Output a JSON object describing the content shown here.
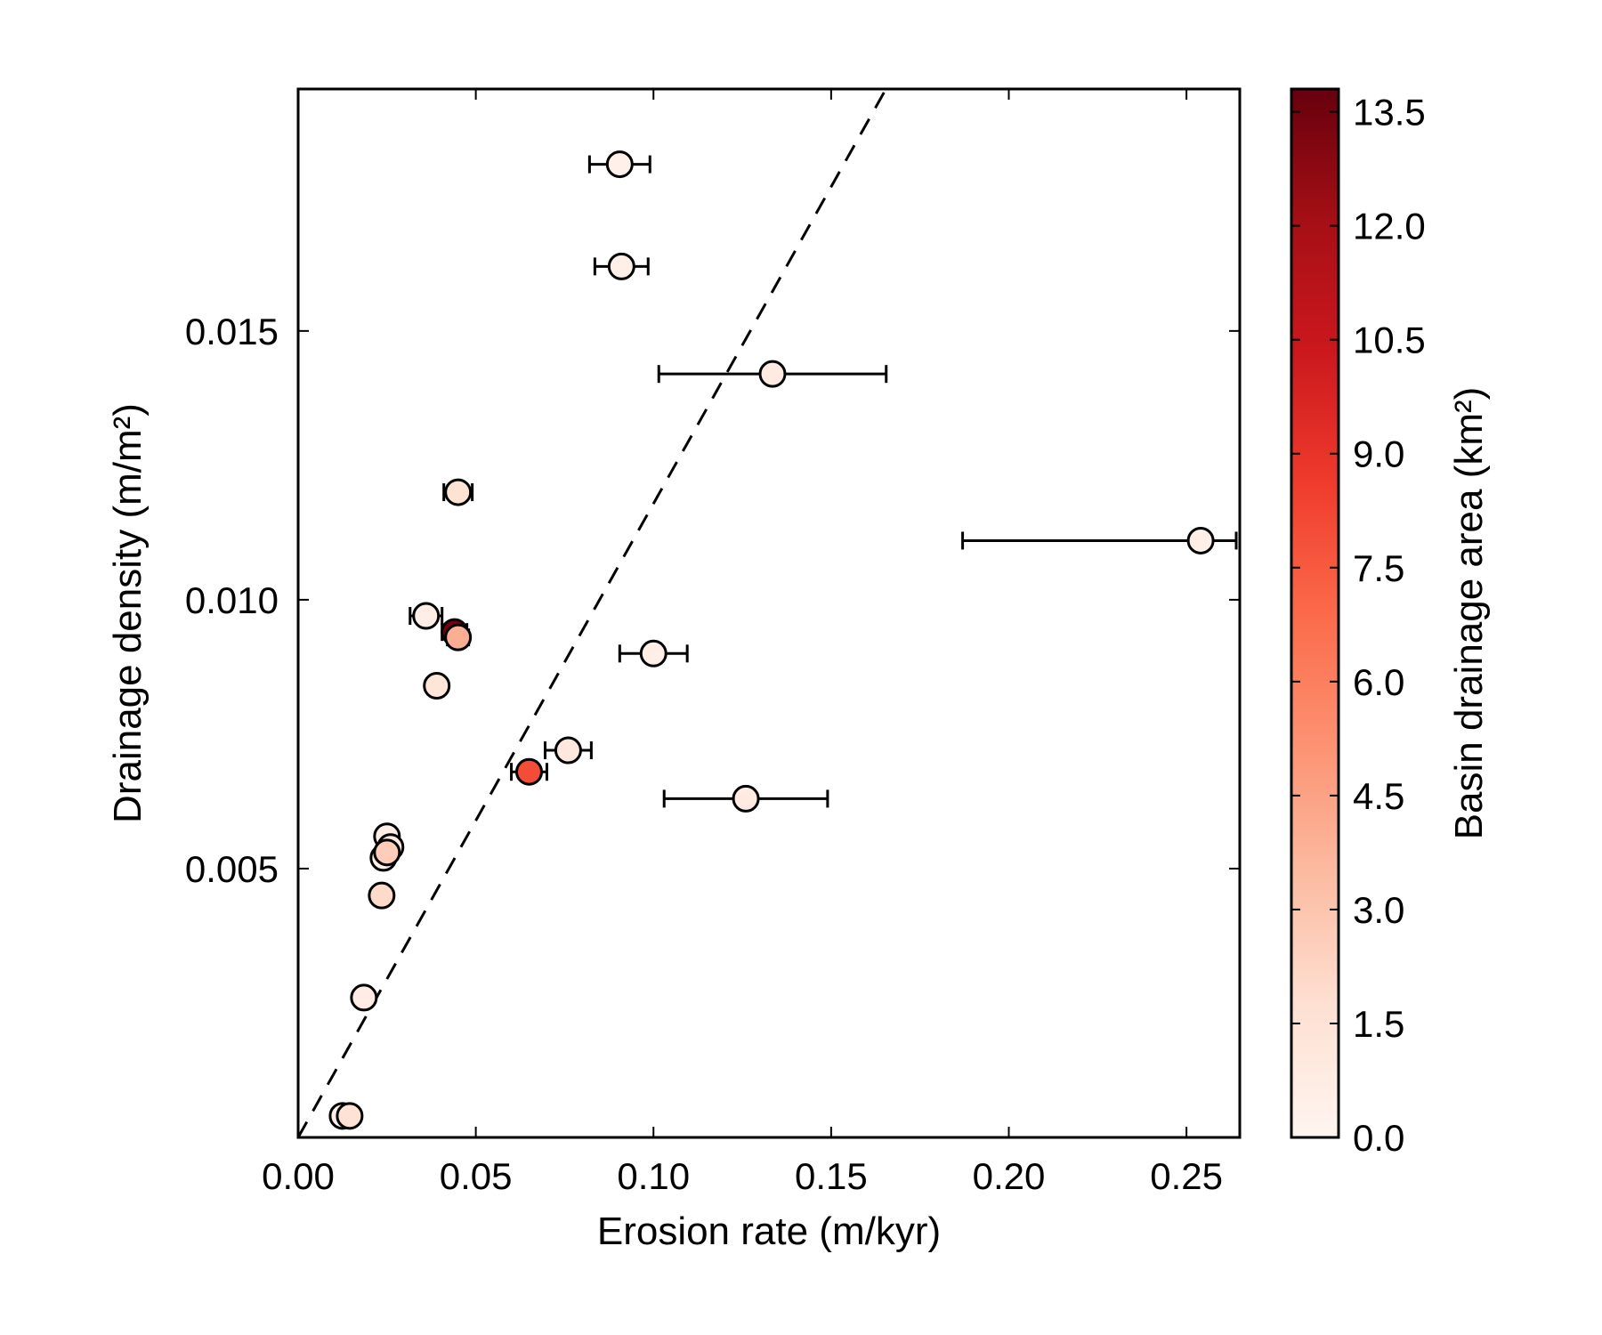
{
  "chart_data": {
    "type": "scatter",
    "title": "",
    "xlabel": "Erosion rate (m/kyr)",
    "ylabel": "Drainage density (m/m²)",
    "xlim": [
      0.0,
      0.265
    ],
    "ylim": [
      0.0,
      0.0195
    ],
    "xticks": [
      "0.00",
      "0.05",
      "0.10",
      "0.15",
      "0.20",
      "0.25"
    ],
    "yticks": [
      "0.005",
      "0.010",
      "0.015"
    ],
    "grid": false,
    "colorbar": {
      "label": "Basin drainage area (km²)",
      "range": [
        0.0,
        13.8
      ],
      "ticks": [
        "0.0",
        "1.5",
        "3.0",
        "4.5",
        "6.0",
        "7.5",
        "9.0",
        "10.5",
        "12.0",
        "13.5"
      ],
      "colormap": "Reds",
      "colors": [
        "#fff5f0",
        "#fee0d2",
        "#fcbba1",
        "#fc9272",
        "#fb6a4a",
        "#ef3b2c",
        "#cb181d",
        "#a50f15",
        "#67000d"
      ]
    },
    "fit_line": {
      "style": "dashed",
      "x": [
        0.0,
        0.165
      ],
      "y": [
        0.0,
        0.01945
      ]
    },
    "points": [
      {
        "x": 0.0905,
        "y": 0.0181,
        "xerr": [
          0.0085,
          0.0085
        ],
        "area": 0.4
      },
      {
        "x": 0.091,
        "y": 0.0162,
        "xerr": [
          0.0075,
          0.0075
        ],
        "area": 0.5
      },
      {
        "x": 0.1335,
        "y": 0.0142,
        "xerr": [
          0.032,
          0.032
        ],
        "area": 0.9
      },
      {
        "x": 0.045,
        "y": 0.012,
        "xerr": [
          0.004,
          0.004
        ],
        "area": 1.6
      },
      {
        "x": 0.254,
        "y": 0.0111,
        "xerr": [
          0.067,
          0.01
        ],
        "area": 0.5
      },
      {
        "x": 0.036,
        "y": 0.0097,
        "xerr": [
          0.0045,
          0.0045
        ],
        "area": 0.6
      },
      {
        "x": 0.044,
        "y": 0.0094,
        "xerr": [
          0.0035,
          0.0035
        ],
        "area": 13.5
      },
      {
        "x": 0.045,
        "y": 0.0093,
        "xerr": [
          0.003,
          0.003
        ],
        "area": 4.0
      },
      {
        "x": 0.1,
        "y": 0.009,
        "xerr": [
          0.0095,
          0.0095
        ],
        "area": 0.5
      },
      {
        "x": 0.039,
        "y": 0.0084,
        "xerr": [
          0.0025,
          0.0025
        ],
        "area": 1.3
      },
      {
        "x": 0.076,
        "y": 0.0072,
        "xerr": [
          0.0065,
          0.0065
        ],
        "area": 1.1
      },
      {
        "x": 0.065,
        "y": 0.0068,
        "xerr": [
          0.005,
          0.005
        ],
        "area": 8.0
      },
      {
        "x": 0.126,
        "y": 0.0063,
        "xerr": [
          0.023,
          0.023
        ],
        "area": 0.8
      },
      {
        "x": 0.025,
        "y": 0.0056,
        "xerr": [
          0,
          0
        ],
        "area": 0.5
      },
      {
        "x": 0.026,
        "y": 0.0054,
        "xerr": [
          0,
          0
        ],
        "area": 0.8
      },
      {
        "x": 0.024,
        "y": 0.0052,
        "xerr": [
          0,
          0
        ],
        "area": 0.6
      },
      {
        "x": 0.025,
        "y": 0.0053,
        "xerr": [
          0,
          0
        ],
        "area": 2.6
      },
      {
        "x": 0.0235,
        "y": 0.0045,
        "xerr": [
          0,
          0
        ],
        "area": 2.0
      },
      {
        "x": 0.0185,
        "y": 0.0026,
        "xerr": [
          0,
          0
        ],
        "area": 0.7
      },
      {
        "x": 0.0125,
        "y": 0.0004,
        "xerr": [
          0,
          0
        ],
        "area": 0.4
      },
      {
        "x": 0.0145,
        "y": 0.0004,
        "xerr": [
          0,
          0
        ],
        "area": 1.6
      }
    ]
  }
}
